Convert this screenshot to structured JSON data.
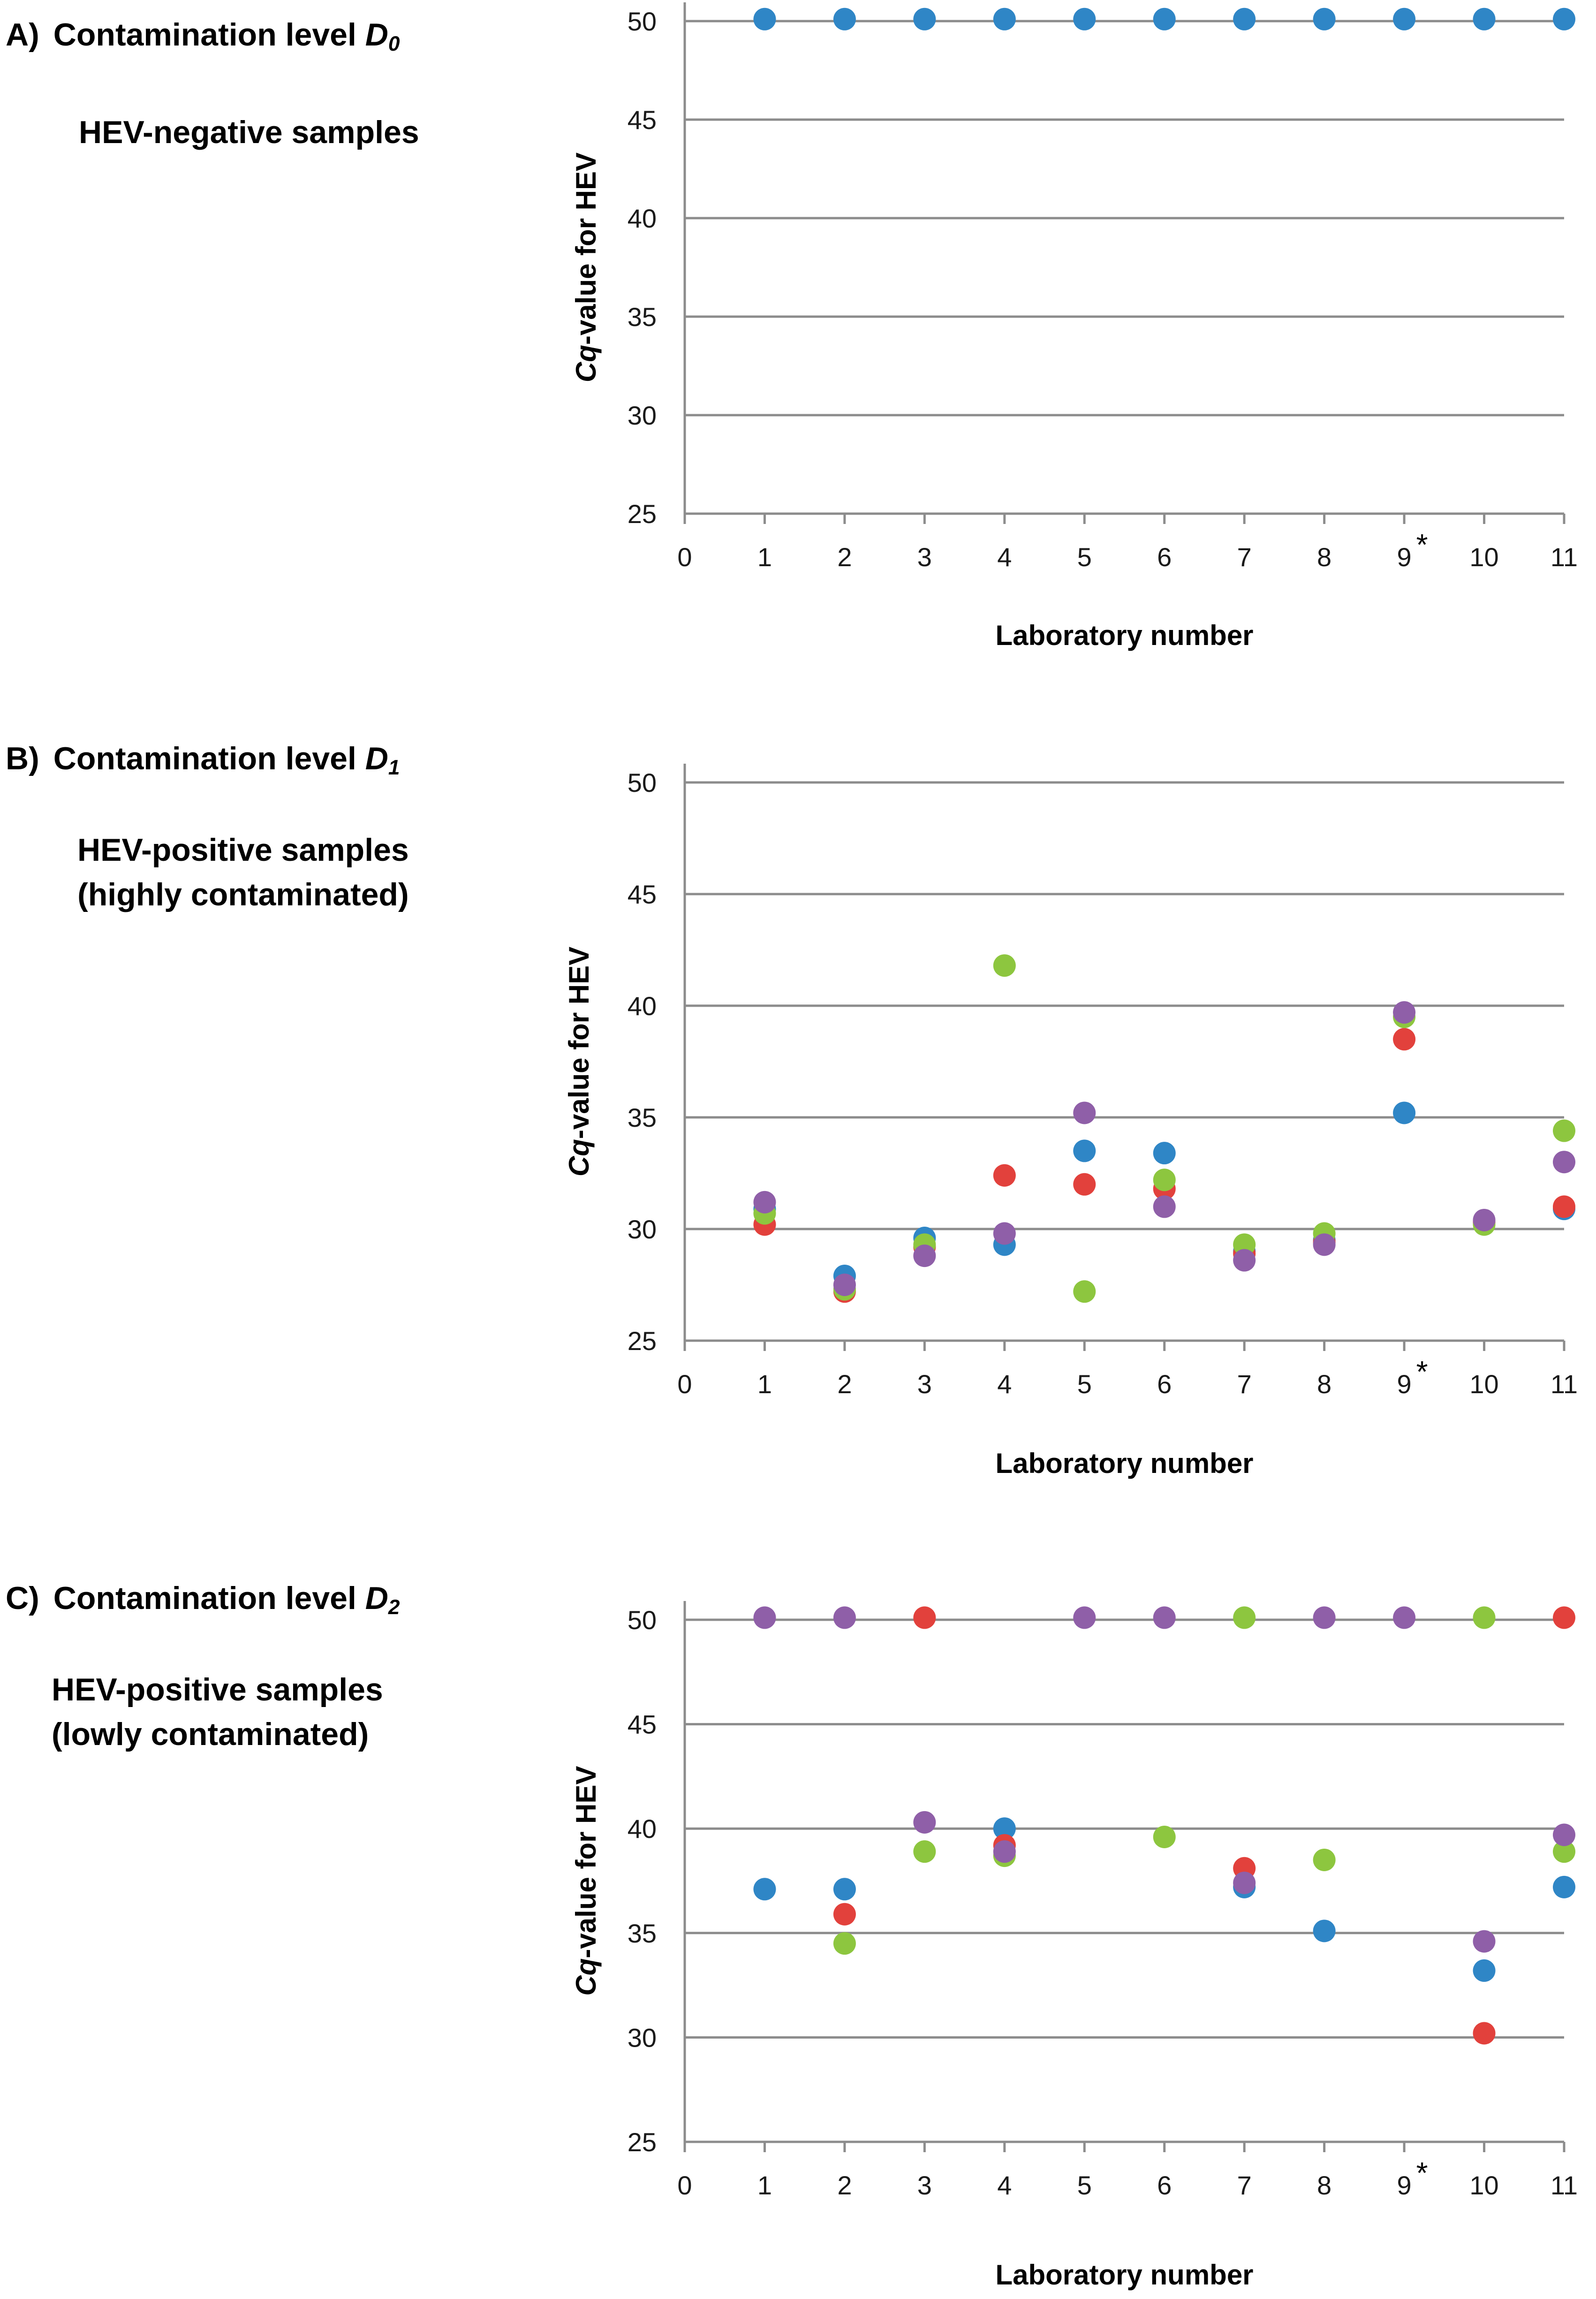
{
  "colors": {
    "blue": "#2f86c6",
    "red": "#e2413c",
    "green": "#8dc63f",
    "purple": "#8f5fa8"
  },
  "panels": [
    {
      "letter": "A)",
      "title": "Contamination level",
      "level_symbol": "D",
      "level_sub": "0",
      "desc_line1": "HEV-negative samples",
      "desc_line2": "",
      "ylabel_italic": "Cq",
      "ylabel_rest": "-value  for HEV",
      "xlabel": "Laboratory number"
    },
    {
      "letter": "B)",
      "title": "Contamination level",
      "level_symbol": "D",
      "level_sub": "1",
      "desc_line1": "HEV-positive samples",
      "desc_line2": "(highly contaminated)",
      "ylabel_italic": "Cq",
      "ylabel_rest": "-value  for HEV",
      "xlabel": "Laboratory number"
    },
    {
      "letter": "C)",
      "title": "Contamination level",
      "level_symbol": "D",
      "level_sub": "2",
      "desc_line1": "HEV-positive samples",
      "desc_line2": "(lowly contaminated)",
      "ylabel_italic": "Cq",
      "ylabel_rest": "-value  for HEV",
      "xlabel": "Laboratory number"
    }
  ],
  "chart_data": [
    {
      "type": "scatter",
      "title": "Contamination level D0 — HEV-negative samples",
      "xlabel": "Laboratory number",
      "ylabel": "Cq-value for HEV",
      "xlim": [
        0,
        11
      ],
      "ylim": [
        25,
        50
      ],
      "xticks": [
        "0",
        "1",
        "2",
        "3",
        "4",
        "5",
        "6",
        "7",
        "8",
        "9",
        "10",
        "11"
      ],
      "yticks": [
        "25",
        "30",
        "35",
        "40",
        "45",
        "50"
      ],
      "starred_tick": "9",
      "star_text": "*",
      "grid": true,
      "series": [
        {
          "name": "blue",
          "color": "blue",
          "points": [
            [
              1,
              50.1
            ],
            [
              2,
              50.1
            ],
            [
              3,
              50.1
            ],
            [
              4,
              50.1
            ],
            [
              5,
              50.1
            ],
            [
              6,
              50.1
            ],
            [
              7,
              50.1
            ],
            [
              8,
              50.1
            ],
            [
              9,
              50.1
            ],
            [
              10,
              50.1
            ],
            [
              11,
              50.1
            ]
          ]
        }
      ]
    },
    {
      "type": "scatter",
      "title": "Contamination level D1 — HEV-positive samples (highly contaminated)",
      "xlabel": "Laboratory number",
      "ylabel": "Cq-value for HEV",
      "xlim": [
        0,
        11
      ],
      "ylim": [
        25,
        50
      ],
      "xticks": [
        "0",
        "1",
        "2",
        "3",
        "4",
        "5",
        "6",
        "7",
        "8",
        "9",
        "10",
        "11"
      ],
      "yticks": [
        "25",
        "30",
        "35",
        "40",
        "45",
        "50"
      ],
      "starred_tick": "9",
      "star_text": "*",
      "grid": true,
      "series": [
        {
          "name": "blue",
          "color": "blue",
          "points": [
            [
              1,
              30.9
            ],
            [
              2,
              27.9
            ],
            [
              3,
              29.6
            ],
            [
              4,
              29.3
            ],
            [
              5,
              33.5
            ],
            [
              6,
              33.4
            ],
            [
              7,
              29.0
            ],
            [
              8,
              29.5
            ],
            [
              9,
              35.2
            ],
            [
              10,
              30.3
            ],
            [
              11,
              30.9
            ]
          ]
        },
        {
          "name": "red",
          "color": "red",
          "points": [
            [
              1,
              30.2
            ],
            [
              2,
              27.2
            ],
            [
              3,
              29.2
            ],
            [
              4,
              32.4
            ],
            [
              5,
              32.0
            ],
            [
              6,
              31.8
            ],
            [
              7,
              28.9
            ],
            [
              8,
              29.4
            ],
            [
              9,
              38.5
            ],
            [
              10,
              30.3
            ],
            [
              11,
              31.0
            ]
          ]
        },
        {
          "name": "green",
          "color": "green",
          "points": [
            [
              1,
              30.7
            ],
            [
              2,
              27.3
            ],
            [
              3,
              29.3
            ],
            [
              4,
              41.8
            ],
            [
              5,
              27.2
            ],
            [
              6,
              32.2
            ],
            [
              7,
              29.3
            ],
            [
              8,
              29.8
            ],
            [
              9,
              39.5
            ],
            [
              10,
              30.2
            ],
            [
              11,
              34.4
            ]
          ]
        },
        {
          "name": "purple",
          "color": "purple",
          "points": [
            [
              1,
              31.2
            ],
            [
              2,
              27.5
            ],
            [
              3,
              28.8
            ],
            [
              4,
              29.8
            ],
            [
              5,
              35.2
            ],
            [
              6,
              31.0
            ],
            [
              7,
              28.6
            ],
            [
              8,
              29.3
            ],
            [
              9,
              39.7
            ],
            [
              10,
              30.4
            ],
            [
              11,
              33.0
            ]
          ]
        }
      ]
    },
    {
      "type": "scatter",
      "title": "Contamination level D2 — HEV-positive samples (lowly contaminated)",
      "xlabel": "Laboratory number",
      "ylabel": "Cq-value for HEV",
      "xlim": [
        0,
        11
      ],
      "ylim": [
        25,
        50
      ],
      "xticks": [
        "0",
        "1",
        "2",
        "3",
        "4",
        "5",
        "6",
        "7",
        "8",
        "9",
        "10",
        "11"
      ],
      "yticks": [
        "25",
        "30",
        "35",
        "40",
        "45",
        "50"
      ],
      "starred_tick": "9",
      "star_text": "*",
      "grid": true,
      "series": [
        {
          "name": "blue",
          "color": "blue",
          "points": [
            [
              1,
              37.1
            ],
            [
              2,
              37.1
            ],
            [
              4,
              40.0
            ],
            [
              7,
              37.2
            ],
            [
              8,
              35.1
            ],
            [
              10,
              33.2
            ],
            [
              11,
              37.2
            ]
          ]
        },
        {
          "name": "red",
          "color": "red",
          "points": [
            [
              2,
              35.9
            ],
            [
              3,
              50.1
            ],
            [
              4,
              39.2
            ],
            [
              7,
              38.1
            ],
            [
              10,
              30.2
            ],
            [
              11,
              50.1
            ]
          ]
        },
        {
          "name": "green",
          "color": "green",
          "points": [
            [
              2,
              34.5
            ],
            [
              3,
              38.9
            ],
            [
              4,
              38.7
            ],
            [
              6,
              39.6
            ],
            [
              7,
              50.1
            ],
            [
              8,
              38.5
            ],
            [
              10,
              50.1
            ],
            [
              11,
              38.9
            ]
          ]
        },
        {
          "name": "purple",
          "color": "purple",
          "points": [
            [
              1,
              50.1
            ],
            [
              2,
              50.1
            ],
            [
              3,
              40.3
            ],
            [
              4,
              38.9
            ],
            [
              5,
              50.1
            ],
            [
              6,
              50.1
            ],
            [
              7,
              37.4
            ],
            [
              8,
              50.1
            ],
            [
              9,
              50.1
            ],
            [
              10,
              34.6
            ],
            [
              11,
              39.7
            ]
          ]
        }
      ]
    }
  ]
}
